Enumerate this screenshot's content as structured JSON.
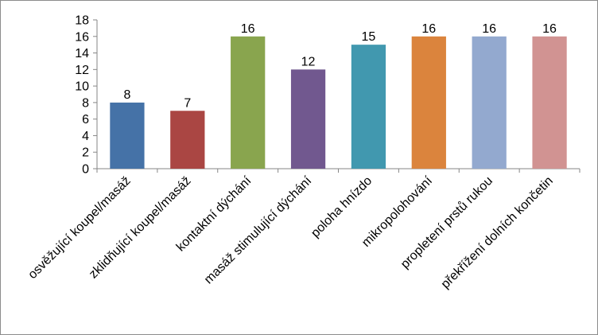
{
  "chart_data": {
    "type": "bar",
    "title": "",
    "xlabel": "",
    "ylabel": "",
    "ylim": [
      0,
      18
    ],
    "yticks": [
      0,
      2,
      4,
      6,
      8,
      10,
      12,
      14,
      16,
      18
    ],
    "grid": false,
    "legend": "none",
    "categories": [
      "osvěžující koupel/masáž",
      "zklidňující koupel/masáž",
      "kontaktní dýchání",
      "masáž stimulující dýchání",
      "poloha hnízdo",
      "mikropolohování",
      "propletení prstů rukou",
      "překřížení dolních končetin"
    ],
    "values": [
      8,
      7,
      16,
      12,
      15,
      16,
      16,
      16
    ],
    "colors": [
      "#4572a7",
      "#aa4643",
      "#89a54e",
      "#71588f",
      "#4198af",
      "#db843d",
      "#93a9cf",
      "#d19392"
    ]
  }
}
